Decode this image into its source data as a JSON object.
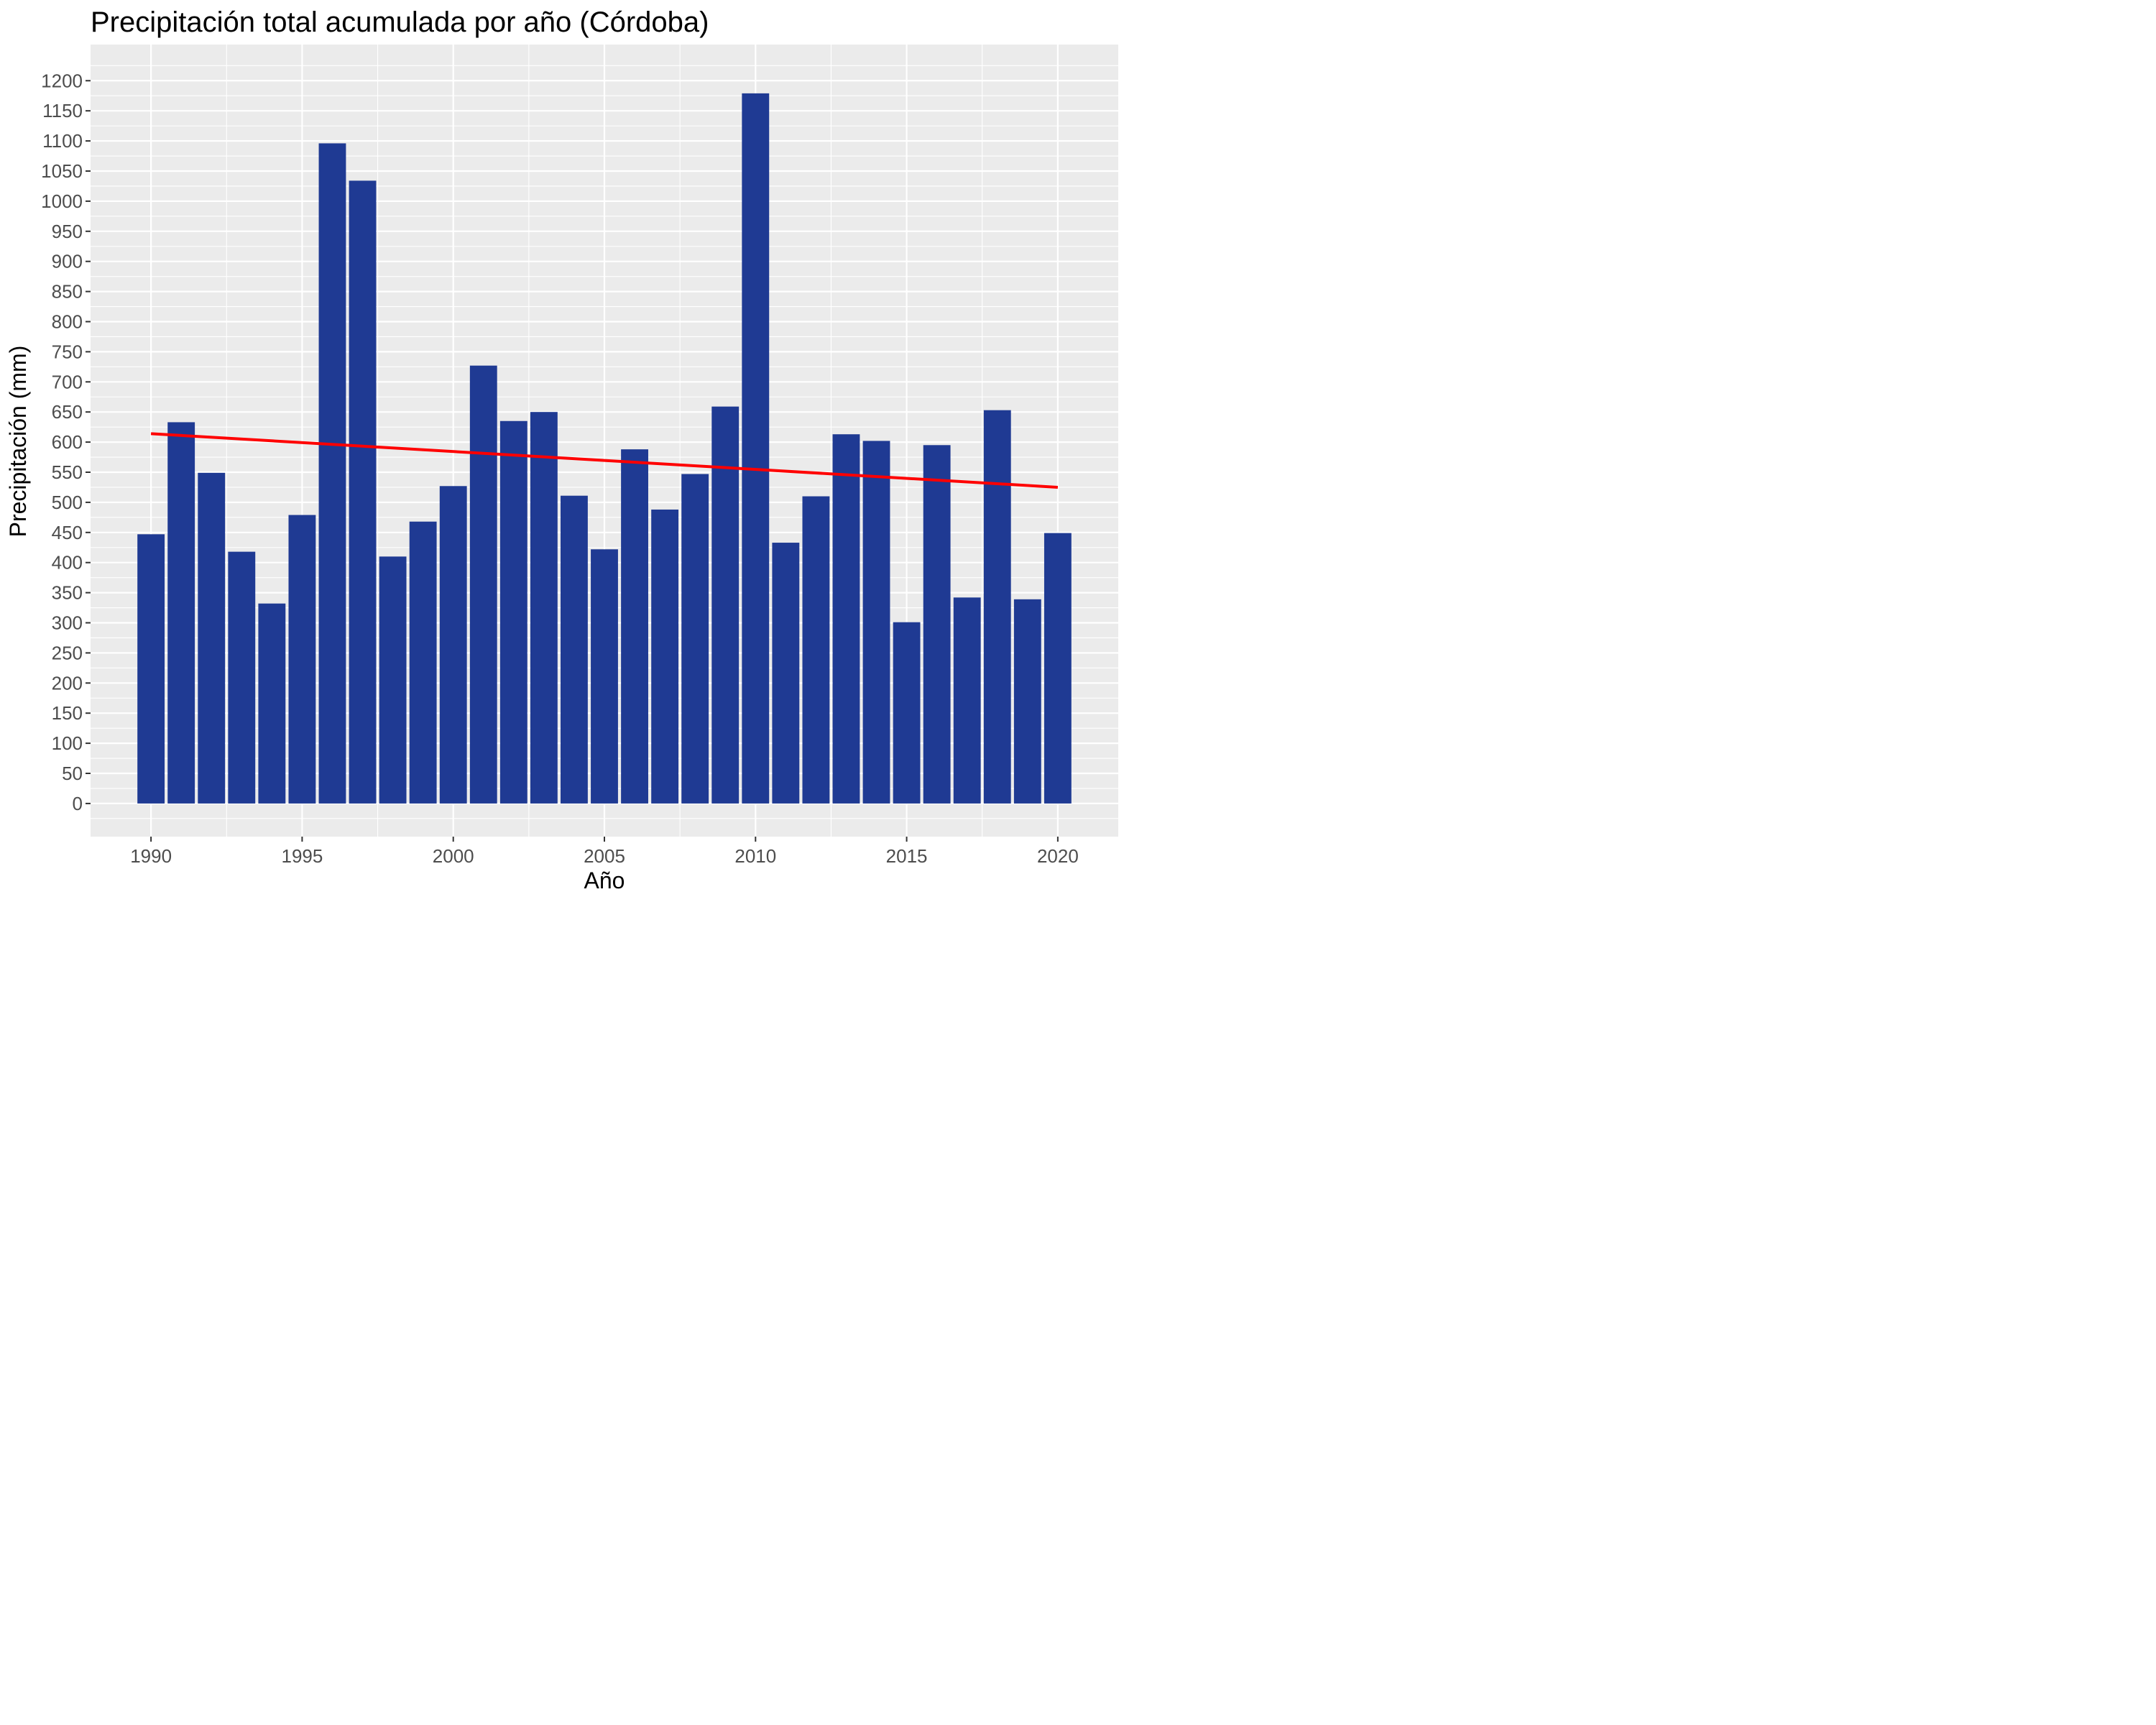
{
  "chart_data": {
    "type": "bar",
    "title": "Precipitación total acumulada por año (Córdoba)",
    "xlabel": "Año",
    "ylabel": "Precipitación (mm)",
    "x": [
      1990,
      1991,
      1992,
      1993,
      1994,
      1995,
      1996,
      1997,
      1998,
      1999,
      2000,
      2001,
      2002,
      2003,
      2004,
      2005,
      2006,
      2007,
      2008,
      2009,
      2010,
      2011,
      2012,
      2013,
      2014,
      2015,
      2016,
      2017,
      2018,
      2019,
      2020
    ],
    "values": [
      447,
      633,
      549,
      418,
      332,
      479,
      1096,
      1034,
      410,
      468,
      527,
      727,
      635,
      650,
      511,
      422,
      588,
      488,
      547,
      659,
      1179,
      433,
      510,
      613,
      602,
      301,
      595,
      342,
      653,
      339,
      449
    ],
    "xticks": [
      "1990",
      "1995",
      "2000",
      "2005",
      "2010",
      "2015",
      "2020"
    ],
    "yticks": [
      "0",
      "50",
      "100",
      "150",
      "200",
      "250",
      "300",
      "350",
      "400",
      "450",
      "500",
      "550",
      "600",
      "650",
      "700",
      "750",
      "800",
      "850",
      "900",
      "950",
      "1000",
      "1050",
      "1100",
      "1150",
      "1200"
    ],
    "xlim": [
      1988,
      2022
    ],
    "ylim": [
      -55,
      1260
    ],
    "grid": true,
    "trend_line": {
      "x": [
        1990,
        2020
      ],
      "y": [
        614,
        525
      ]
    },
    "colors": {
      "bar": "#1f3a93",
      "trend": "#ff0000",
      "panel": "#ebebeb",
      "grid": "#ffffff"
    }
  }
}
